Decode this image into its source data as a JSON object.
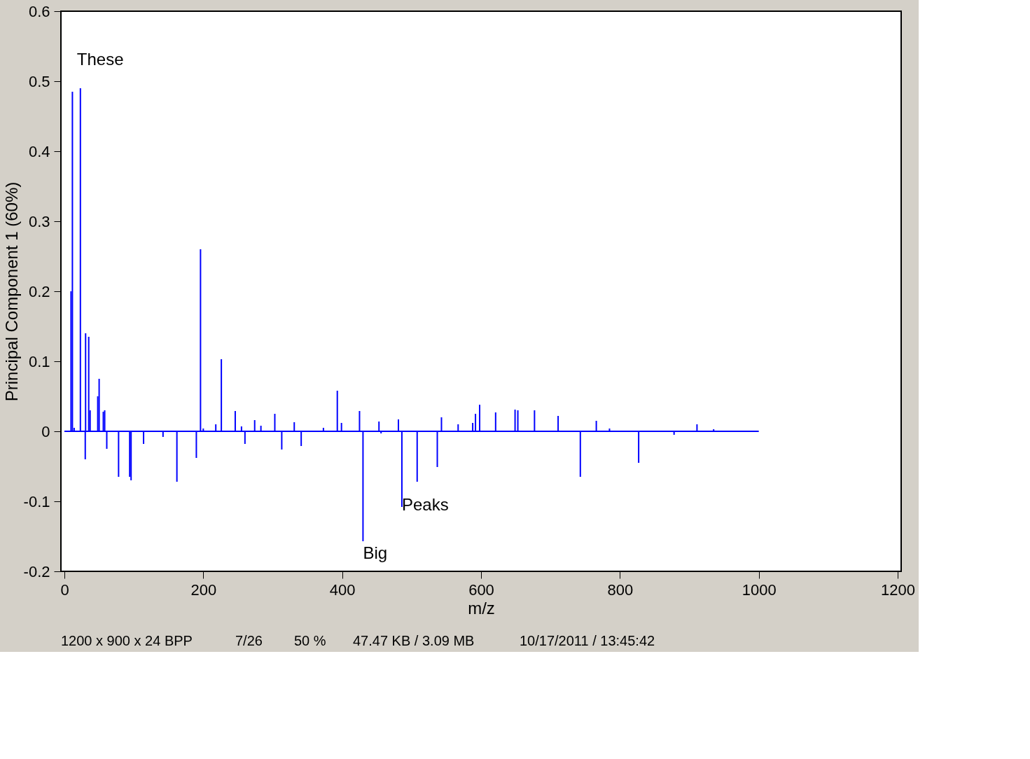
{
  "chart_data": {
    "type": "bar",
    "xlabel": "m/z",
    "ylabel": "Principal Component 1 (60%)",
    "x": [
      9.5,
      11.5,
      14,
      23,
      30,
      30.5,
      35,
      37,
      48,
      50,
      56,
      58,
      61,
      78,
      94,
      96,
      114,
      142,
      162,
      190,
      196,
      200,
      218,
      226,
      229,
      246,
      255,
      260,
      274,
      283,
      303,
      313,
      331,
      341,
      373,
      393,
      399,
      425,
      430,
      453,
      456,
      481,
      486,
      508,
      537,
      543,
      567,
      588,
      592,
      598,
      621,
      649,
      653,
      677,
      711,
      743,
      766,
      785,
      827,
      878,
      911,
      935
    ],
    "series": [
      {
        "color": "#0000ff",
        "values": [
          0.2,
          0.485,
          0.005,
          0.49,
          -0.04,
          0.14,
          0.135,
          0.03,
          0.05,
          0.075,
          0.028,
          0.03,
          -0.025,
          -0.065,
          -0.065,
          -0.07,
          -0.018,
          -0.008,
          -0.072,
          -0.038,
          0.26,
          0.004,
          0.01,
          0.103,
          0.0,
          0.029,
          0.007,
          -0.018,
          0.016,
          0.008,
          0.025,
          -0.026,
          0.013,
          -0.021,
          0.005,
          0.058,
          0.012,
          0.029,
          -0.157,
          0.014,
          -0.003,
          0.017,
          -0.108,
          -0.072,
          -0.051,
          0.02,
          0.01,
          0.012,
          0.025,
          0.038,
          0.027,
          0.031,
          0.03,
          0.03,
          0.022,
          -0.065,
          0.015,
          0.004,
          -0.045,
          -0.005,
          0.01,
          0.003
        ]
      },
      {
        "type": "line",
        "color": "#0000ff",
        "x": [
          0,
          1000
        ],
        "values": [
          0,
          0
        ]
      }
    ],
    "xlim": [
      0,
      1200
    ],
    "xticks": [
      0,
      200,
      400,
      600,
      800,
      1000,
      1200
    ],
    "ylim": [
      -0.2,
      0.6
    ],
    "yticks": [
      -0.2,
      -0.1,
      0,
      0.1,
      0.2,
      0.3,
      0.4,
      0.5,
      0.6
    ],
    "grid": false,
    "annotations": [
      {
        "text": "These",
        "x": 23,
        "y": 0.49
      },
      {
        "text": "Big",
        "x": 430,
        "y": -0.157
      },
      {
        "text": "Peaks",
        "x": 486,
        "y": -0.108
      },
      "1200 x 900 x 24 BPP",
      "7/26",
      "50 %",
      "47.47 KB / 3.09 MB",
      "10/17/2011 / 13:45:42"
    ]
  }
}
